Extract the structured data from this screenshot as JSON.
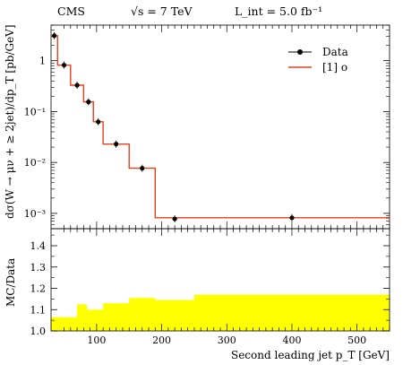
{
  "header": {
    "experiment": "CMS",
    "energy": "√s = 7 TeV",
    "lumi": "L_int = 5.0 fb⁻¹"
  },
  "chart_data": [
    {
      "type": "line",
      "panel": "main",
      "ylabel": "dσ(W → μν + ≥ 2jet)/dp_T [pb/GeV]",
      "yscale": "log",
      "ylim": [
        0.0005,
        5
      ],
      "xlim": [
        30,
        550
      ],
      "ytick_labels": [
        "1",
        "10⁻¹",
        "10⁻²",
        "10⁻³"
      ],
      "ytick_values": [
        1,
        0.1,
        0.01,
        0.001
      ],
      "bin_edges": [
        30,
        40,
        60,
        80,
        95,
        110,
        150,
        190,
        250,
        550
      ],
      "series": [
        {
          "name": "Data",
          "x": [
            35,
            50,
            70,
            87.5,
            102.5,
            130,
            170,
            220,
            400
          ],
          "values": [
            3.1,
            0.82,
            0.33,
            0.155,
            0.063,
            0.023,
            0.0077,
            0.00078,
            0.00082
          ]
        },
        {
          "name": "[1] o",
          "bin_values": [
            3.1,
            0.82,
            0.33,
            0.155,
            0.063,
            0.023,
            0.0077,
            0.00082,
            0.00082
          ]
        }
      ],
      "legend": "top-right"
    },
    {
      "type": "area",
      "panel": "ratio",
      "ylabel": "MC/Data",
      "xlabel": "Second leading jet p_T [GeV]",
      "ylim": [
        1.0,
        1.48
      ],
      "xlim": [
        30,
        550
      ],
      "ytick_labels": [
        "1.0",
        "1.1",
        "1.2",
        "1.3",
        "1.4"
      ],
      "ytick_values": [
        1.0,
        1.1,
        1.2,
        1.3,
        1.4
      ],
      "xtick_labels": [
        "100",
        "200",
        "300",
        "400",
        "500"
      ],
      "xtick_values": [
        100,
        200,
        300,
        400,
        500
      ],
      "bin_edges": [
        30,
        70,
        85,
        110,
        150,
        190,
        250,
        550
      ],
      "band_upper": [
        1.065,
        1.125,
        1.1,
        1.13,
        1.155,
        1.145,
        1.17
      ],
      "band_color": "#ffff00"
    }
  ]
}
